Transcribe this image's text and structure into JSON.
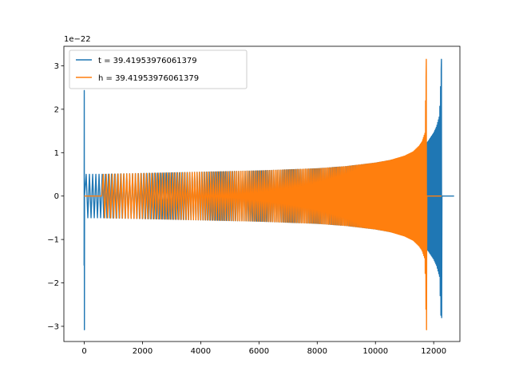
{
  "chart_data": {
    "type": "line",
    "title": "",
    "xlabel": "",
    "ylabel": "",
    "y_offset_label": "1e−22",
    "xlim": [
      -700,
      12900
    ],
    "ylim": [
      -3.35,
      3.45
    ],
    "xticks": [
      0,
      2000,
      4000,
      6000,
      8000,
      10000,
      12000
    ],
    "xtick_labels": [
      "0",
      "2000",
      "4000",
      "6000",
      "8000",
      "10000",
      "12000"
    ],
    "yticks": [
      -3,
      -2,
      -1,
      0,
      1,
      2,
      3
    ],
    "ytick_labels": [
      "−3",
      "−2",
      "−1",
      "0",
      "1",
      "2",
      "3"
    ],
    "grid": false,
    "legend_position": "top-left",
    "series": [
      {
        "name": "t = 39.41953976061379",
        "color": "#1f77b4",
        "description": "ringdown spike near x=0 (peak 2.4, trough -3.1), then chirp oscillation amplitude ~0.5 growing to ~1.9 near x=12200, merger peak 3.15 / trough -2.8 at x≈12270, then flat at 0",
        "x": [
          0,
          600,
          2000,
          4000,
          6000,
          8000,
          9000,
          10000,
          10500,
          11000,
          11500,
          11800,
          12000,
          12100,
          12200,
          12270,
          12300,
          12700
        ],
        "amplitude": [
          0.5,
          0.5,
          0.52,
          0.55,
          0.58,
          0.63,
          0.68,
          0.76,
          0.82,
          0.9,
          1.05,
          1.25,
          1.45,
          1.6,
          1.85,
          3.15,
          0,
          0
        ],
        "spike": {
          "x": 0,
          "max": 2.43,
          "min": -3.08
        },
        "merger": {
          "x": 12270,
          "max": 3.15,
          "min": -2.8
        }
      },
      {
        "name": "h = 39.41953976061379",
        "color": "#ff7f0e",
        "description": "flat near 0 from x=0 to ~600, then chirp oscillation amplitude ~0.5 growing to ~1.5 near x=11700, merger peak 3.15 / trough -3.08 at x≈11750, then flat at 0 to x≈12270",
        "x": [
          0,
          600,
          2000,
          4000,
          6000,
          8000,
          9000,
          10000,
          10500,
          11000,
          11300,
          11500,
          11600,
          11700,
          11750,
          11780,
          12270
        ],
        "amplitude": [
          0,
          0.5,
          0.52,
          0.55,
          0.58,
          0.63,
          0.68,
          0.76,
          0.82,
          0.92,
          1.02,
          1.15,
          1.25,
          1.45,
          3.15,
          0,
          0
        ],
        "merger": {
          "x": 11750,
          "max": 3.15,
          "min": -3.08
        }
      }
    ]
  }
}
